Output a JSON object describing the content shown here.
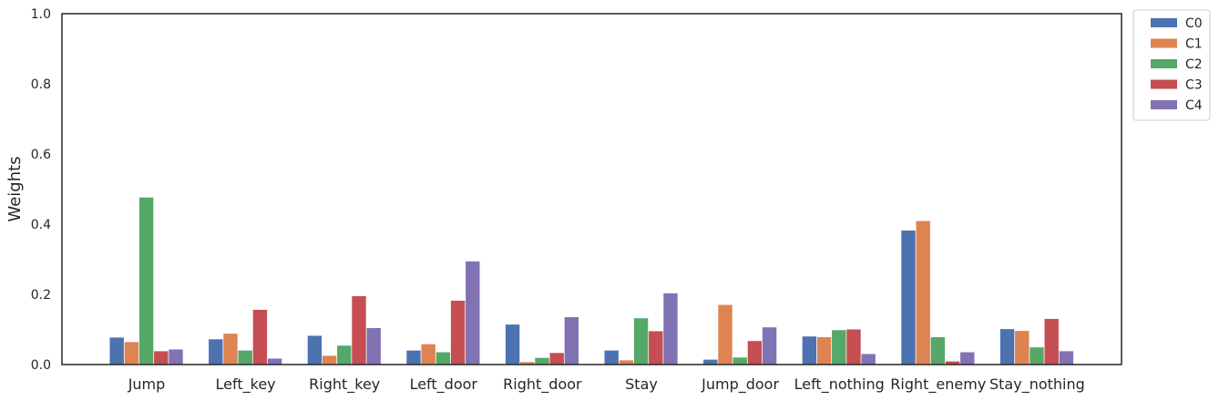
{
  "chart_data": {
    "type": "bar",
    "ylabel": "Weights",
    "xlabel": "",
    "ylim": [
      0,
      1
    ],
    "yticks": [
      "0.0",
      "0.2",
      "0.4",
      "0.6",
      "0.8",
      "1.0"
    ],
    "ytick_values": [
      0,
      0.2,
      0.4,
      0.6,
      0.8,
      1.0
    ],
    "grid": false,
    "legend_position": "outside top-right",
    "categories": [
      "Jump",
      "Left_key",
      "Right_key",
      "Left_door",
      "Right_door",
      "Stay",
      "Jump_door",
      "Left_nothing",
      "Right_enemy",
      "Stay_nothing"
    ],
    "series": [
      {
        "name": "C0",
        "color": "#4c72b0",
        "values": [
          0.077,
          0.072,
          0.082,
          0.04,
          0.114,
          0.04,
          0.014,
          0.08,
          0.382,
          0.101
        ]
      },
      {
        "name": "C1",
        "color": "#dd8452",
        "values": [
          0.064,
          0.088,
          0.025,
          0.058,
          0.007,
          0.012,
          0.17,
          0.078,
          0.409,
          0.096
        ]
      },
      {
        "name": "C2",
        "color": "#55a868",
        "values": [
          0.476,
          0.04,
          0.054,
          0.035,
          0.019,
          0.132,
          0.02,
          0.098,
          0.078,
          0.049
        ]
      },
      {
        "name": "C3",
        "color": "#c44e52",
        "values": [
          0.038,
          0.156,
          0.195,
          0.182,
          0.033,
          0.095,
          0.067,
          0.1,
          0.009,
          0.13
        ]
      },
      {
        "name": "C4",
        "color": "#8172b3",
        "values": [
          0.043,
          0.017,
          0.104,
          0.294,
          0.135,
          0.203,
          0.106,
          0.03,
          0.035,
          0.038
        ]
      }
    ]
  }
}
